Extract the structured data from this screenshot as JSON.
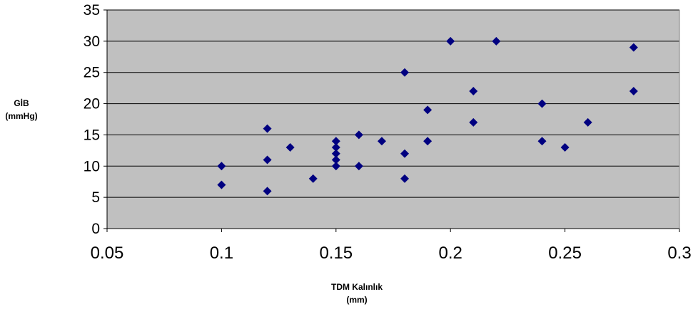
{
  "chart_data": {
    "type": "scatter",
    "xlabel": [
      "TDM Kalınlık",
      "(mm)"
    ],
    "ylabel": [
      "GİB",
      "(mmHg)"
    ],
    "xlim": [
      0.05,
      0.3
    ],
    "ylim": [
      0,
      35
    ],
    "xticks": [
      "0.05",
      "0.1",
      "0.15",
      "0.2",
      "0.25",
      "0.3"
    ],
    "yticks": [
      "0",
      "5",
      "10",
      "15",
      "20",
      "25",
      "30",
      "35"
    ],
    "grid": "horizontal",
    "plot_background": "#c0c0c0",
    "marker_color": "#000080",
    "marker": "diamond",
    "points": [
      [
        0.1,
        10
      ],
      [
        0.1,
        7
      ],
      [
        0.12,
        16
      ],
      [
        0.12,
        11
      ],
      [
        0.12,
        6
      ],
      [
        0.13,
        13
      ],
      [
        0.14,
        8
      ],
      [
        0.15,
        14
      ],
      [
        0.15,
        13
      ],
      [
        0.15,
        12
      ],
      [
        0.15,
        11
      ],
      [
        0.15,
        10
      ],
      [
        0.16,
        15
      ],
      [
        0.16,
        10
      ],
      [
        0.17,
        14
      ],
      [
        0.18,
        25
      ],
      [
        0.18,
        12
      ],
      [
        0.18,
        8
      ],
      [
        0.19,
        19
      ],
      [
        0.19,
        14
      ],
      [
        0.2,
        30
      ],
      [
        0.21,
        22
      ],
      [
        0.21,
        17
      ],
      [
        0.22,
        30
      ],
      [
        0.24,
        20
      ],
      [
        0.24,
        14
      ],
      [
        0.25,
        13
      ],
      [
        0.26,
        17
      ],
      [
        0.28,
        29
      ],
      [
        0.28,
        22
      ]
    ]
  }
}
